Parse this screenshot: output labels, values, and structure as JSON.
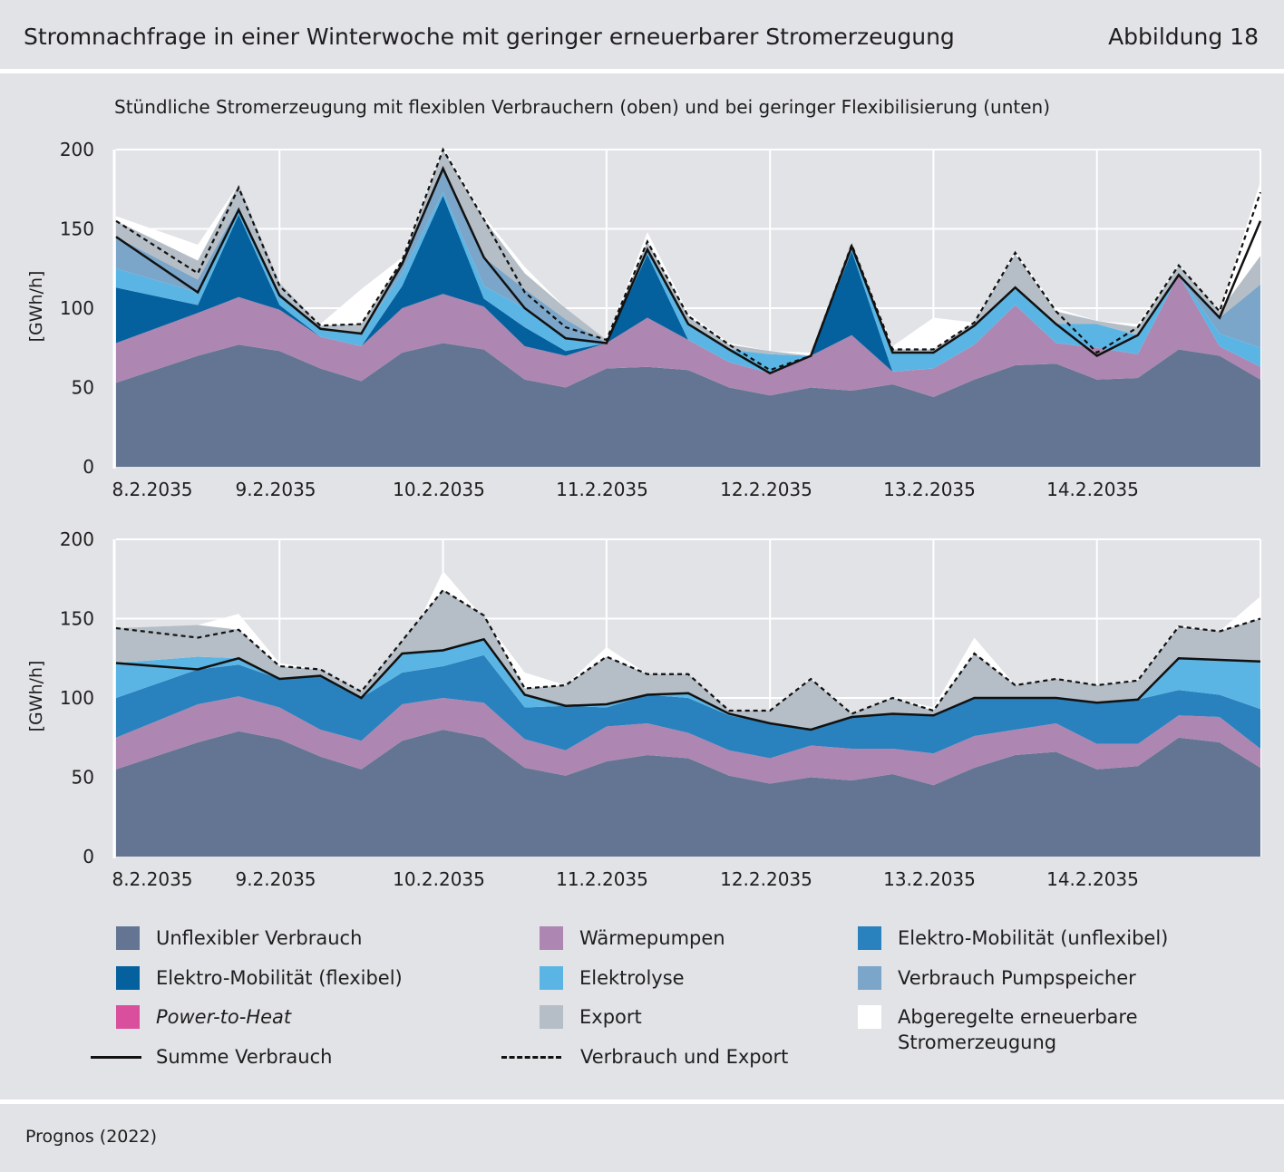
{
  "header": {
    "title": "Stromnachfrage in einer Winterwoche mit geringer erneuerbarer Stromerzeugung",
    "figure_number": "Abbildung 18"
  },
  "subtitle": "Stündliche Stromerzeugung mit flexiblen Verbrauchern (oben) und bei geringer Flexibilisierung (unten)",
  "source": "Prognos (2022)",
  "colors": {
    "unflexibel": "#637592",
    "waermepumpen": "#ad86b1",
    "emob_unflex": "#2981bd",
    "emob_flex": "#05619e",
    "elektrolyse": "#5bb5e4",
    "pumpspeicher": "#7ba6c9",
    "p2h": "#d94f9d",
    "export": "#b5bec6",
    "abgeregelt": "#ffffff",
    "summe": "#111111",
    "verbrauch_export": "#111111"
  },
  "legend": {
    "unflexibel": "Unflexibler Verbrauch",
    "waermepumpen": "Wärmepumpen",
    "emob_unflex": "Elektro-Mobilität  (unflexibel)",
    "emob_flex": "Elektro-Mobilität  (flexibel)",
    "elektrolyse": "Elektrolyse",
    "pumpspeicher": "Verbrauch Pumpspeicher",
    "p2h": "Power-to-Heat",
    "export": "Export",
    "abgeregelt_line1": "Abgeregelte erneuerbare",
    "abgeregelt_line2": "Stromerzeugung",
    "summe": "Summe Verbrauch",
    "verbrauch_export": "Verbrauch und Export"
  },
  "chart_data": [
    {
      "type": "area",
      "title": "",
      "ylabel": "[GWh/h]",
      "ylim": [
        0,
        200
      ],
      "yticks": [
        "0",
        "50",
        "100",
        "150",
        "200"
      ],
      "x_tick_labels": [
        "8.2.2035",
        "9.2.2035",
        "10.2.2035",
        "11.2.2035",
        "12.2.2035",
        "13.2.2035",
        "14.2.2035"
      ],
      "x_hours": [
        0,
        12,
        18,
        24,
        30,
        36,
        42,
        48,
        54,
        60,
        66,
        72,
        78,
        84,
        90,
        96,
        102,
        108,
        114,
        120,
        126,
        132,
        138,
        144,
        150,
        156,
        162,
        168
      ],
      "grid": true,
      "stacked_series": [
        {
          "key": "unflexibel",
          "values": [
            53,
            70,
            77,
            73,
            62,
            54,
            72,
            78,
            74,
            55,
            50,
            62,
            63,
            61,
            50,
            45,
            50,
            48,
            52,
            44,
            55,
            64,
            65,
            55,
            56,
            74,
            70,
            55
          ]
        },
        {
          "key": "waermepumpen",
          "values": [
            25,
            27,
            30,
            26,
            20,
            22,
            28,
            31,
            27,
            21,
            20,
            16,
            31,
            19,
            16,
            14,
            20,
            35,
            8,
            18,
            22,
            38,
            13,
            20,
            15,
            47,
            6,
            8
          ]
        },
        {
          "key": "emob_unflex",
          "values": [
            0,
            0,
            0,
            0,
            0,
            0,
            0,
            0,
            0,
            0,
            0,
            0,
            0,
            0,
            0,
            0,
            0,
            0,
            0,
            0,
            0,
            0,
            0,
            0,
            0,
            0,
            0,
            0
          ]
        },
        {
          "key": "emob_flex",
          "values": [
            35,
            5,
            52,
            3,
            0,
            0,
            14,
            62,
            5,
            12,
            3,
            0,
            40,
            0,
            0,
            0,
            0,
            53,
            0,
            0,
            0,
            0,
            0,
            0,
            0,
            0,
            0,
            0
          ]
        },
        {
          "key": "elektrolyse",
          "values": [
            12,
            8,
            5,
            6,
            5,
            8,
            8,
            2,
            8,
            12,
            8,
            0,
            3,
            10,
            8,
            12,
            0,
            3,
            12,
            10,
            12,
            10,
            12,
            15,
            12,
            0,
            8,
            12
          ]
        },
        {
          "key": "pumpspeicher",
          "values": [
            20,
            8,
            0,
            2,
            0,
            0,
            6,
            15,
            18,
            12,
            12,
            0,
            0,
            0,
            0,
            0,
            0,
            0,
            0,
            0,
            0,
            0,
            0,
            0,
            0,
            0,
            10,
            40
          ]
        },
        {
          "key": "p2h",
          "values": [
            0,
            0,
            0,
            0,
            0,
            0,
            0,
            0,
            0,
            0,
            0,
            0,
            0,
            0,
            0,
            0,
            0,
            0,
            0,
            0,
            0,
            0,
            0,
            0,
            0,
            0,
            0,
            0
          ]
        },
        {
          "key": "export",
          "values": [
            10,
            12,
            14,
            6,
            2,
            6,
            2,
            12,
            24,
            10,
            7,
            2,
            5,
            5,
            3,
            2,
            0,
            0,
            2,
            2,
            2,
            22,
            8,
            2,
            5,
            6,
            4,
            18
          ]
        }
      ],
      "curtailment_top": [
        158,
        140,
        178,
        112,
        90,
        112,
        132,
        202,
        158,
        126,
        100,
        80,
        148,
        97,
        78,
        73,
        72,
        140,
        76,
        94,
        91,
        136,
        100,
        92,
        90,
        128,
        98,
        180
      ],
      "summe_verbrauch": [
        145,
        110,
        162,
        108,
        87,
        84,
        128,
        188,
        132,
        100,
        81,
        78,
        137,
        90,
        74,
        59,
        70,
        139,
        72,
        72,
        89,
        113,
        90,
        70,
        83,
        121,
        94,
        155
      ],
      "verbrauch_und_export": [
        155,
        122,
        176,
        114,
        89,
        90,
        130,
        200,
        156,
        110,
        88,
        80,
        142,
        95,
        77,
        61,
        70,
        140,
        74,
        74,
        91,
        135,
        98,
        72,
        88,
        127,
        98,
        173
      ]
    },
    {
      "type": "area",
      "title": "",
      "ylabel": "[GWh/h]",
      "ylim": [
        0,
        200
      ],
      "yticks": [
        "0",
        "50",
        "100",
        "150",
        "200"
      ],
      "x_tick_labels": [
        "8.2.2035",
        "9.2.2035",
        "10.2.2035",
        "11.2.2035",
        "12.2.2035",
        "13.2.2035",
        "14.2.2035"
      ],
      "x_hours": [
        0,
        12,
        18,
        24,
        30,
        36,
        42,
        48,
        54,
        60,
        66,
        72,
        78,
        84,
        90,
        96,
        102,
        108,
        114,
        120,
        126,
        132,
        138,
        144,
        150,
        156,
        162,
        168
      ],
      "grid": true,
      "stacked_series": [
        {
          "key": "unflexibel",
          "values": [
            55,
            72,
            79,
            74,
            63,
            55,
            73,
            80,
            75,
            56,
            51,
            60,
            64,
            62,
            51,
            46,
            50,
            48,
            52,
            45,
            56,
            64,
            66,
            55,
            57,
            75,
            72,
            56
          ]
        },
        {
          "key": "waermepumpen",
          "values": [
            20,
            24,
            22,
            20,
            17,
            18,
            23,
            20,
            22,
            18,
            16,
            22,
            20,
            16,
            16,
            16,
            20,
            20,
            16,
            20,
            20,
            16,
            18,
            16,
            14,
            14,
            16,
            12
          ]
        },
        {
          "key": "emob_unflex",
          "values": [
            25,
            22,
            20,
            18,
            34,
            27,
            20,
            20,
            30,
            20,
            28,
            12,
            18,
            22,
            22,
            22,
            10,
            20,
            22,
            24,
            24,
            20,
            16,
            26,
            28,
            16,
            14,
            25
          ]
        },
        {
          "key": "emob_flex",
          "values": [
            0,
            0,
            0,
            0,
            0,
            0,
            0,
            0,
            0,
            0,
            0,
            0,
            0,
            0,
            0,
            0,
            0,
            0,
            0,
            0,
            0,
            0,
            0,
            0,
            0,
            0,
            0,
            0
          ]
        },
        {
          "key": "elektrolyse",
          "values": [
            22,
            8,
            4,
            0,
            0,
            0,
            12,
            10,
            10,
            8,
            0,
            2,
            0,
            3,
            1,
            0,
            0,
            0,
            0,
            0,
            0,
            0,
            0,
            0,
            0,
            20,
            22,
            30
          ]
        },
        {
          "key": "pumpspeicher",
          "values": [
            0,
            0,
            0,
            0,
            0,
            0,
            0,
            0,
            0,
            0,
            0,
            0,
            0,
            0,
            0,
            0,
            0,
            0,
            0,
            0,
            0,
            0,
            0,
            0,
            0,
            0,
            0,
            0
          ]
        },
        {
          "key": "p2h",
          "values": [
            0,
            0,
            0,
            0,
            0,
            0,
            0,
            0,
            0,
            0,
            0,
            0,
            0,
            0,
            0,
            0,
            0,
            0,
            0,
            0,
            0,
            0,
            0,
            0,
            0,
            0,
            0,
            0
          ]
        },
        {
          "key": "export",
          "values": [
            22,
            20,
            18,
            8,
            4,
            4,
            8,
            38,
            15,
            4,
            13,
            30,
            13,
            12,
            2,
            8,
            32,
            2,
            10,
            3,
            28,
            8,
            12,
            11,
            12,
            20,
            18,
            27
          ]
        }
      ],
      "curtailment_top": [
        144,
        146,
        153,
        122,
        118,
        104,
        126,
        180,
        150,
        116,
        108,
        132,
        115,
        114,
        92,
        92,
        113,
        90,
        100,
        94,
        138,
        108,
        112,
        108,
        112,
        146,
        142,
        164
      ],
      "summe_verbrauch": [
        122,
        118,
        125,
        112,
        114,
        100,
        128,
        130,
        137,
        102,
        95,
        96,
        102,
        103,
        90,
        84,
        80,
        88,
        90,
        89,
        100,
        100,
        100,
        97,
        99,
        125,
        124,
        123
      ],
      "verbrauch_und_export": [
        144,
        138,
        143,
        120,
        118,
        104,
        136,
        168,
        152,
        106,
        108,
        126,
        115,
        115,
        92,
        92,
        112,
        90,
        100,
        92,
        128,
        108,
        112,
        108,
        111,
        145,
        142,
        150
      ]
    }
  ]
}
